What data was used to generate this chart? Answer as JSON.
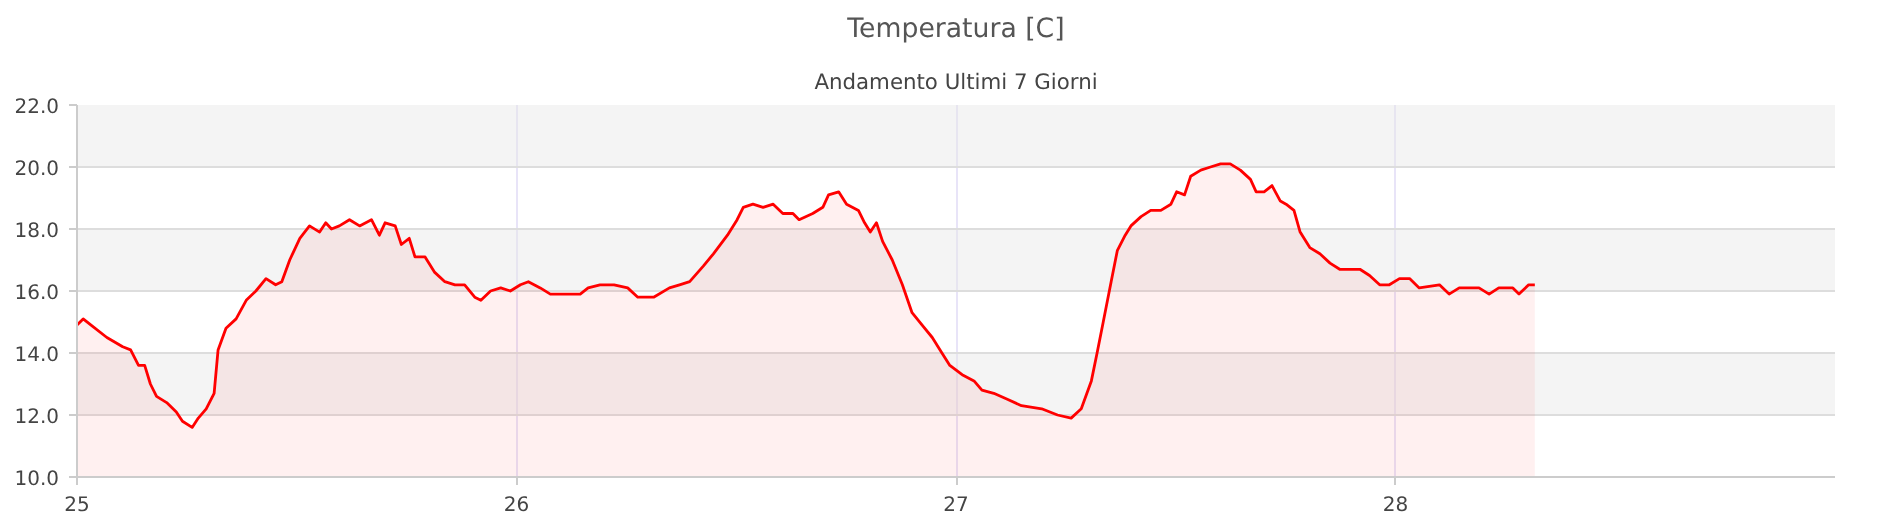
{
  "chart_data": {
    "type": "area",
    "title": "Temperatura [C]",
    "subtitle": "Andamento Ultimi 7 Giorni",
    "x": [
      25.0,
      25.014,
      25.032,
      25.068,
      25.104,
      25.122,
      25.14,
      25.154,
      25.167,
      25.181,
      25.204,
      25.226,
      25.24,
      25.262,
      25.276,
      25.294,
      25.312,
      25.321,
      25.339,
      25.362,
      25.385,
      25.407,
      25.43,
      25.452,
      25.466,
      25.484,
      25.507,
      25.529,
      25.552,
      25.566,
      25.579,
      25.597,
      25.62,
      25.643,
      25.67,
      25.688,
      25.701,
      25.724,
      25.738,
      25.756,
      25.769,
      25.792,
      25.814,
      25.837,
      25.86,
      25.882,
      25.905,
      25.919,
      25.941,
      25.964,
      25.986,
      26.009,
      26.027,
      26.054,
      26.077,
      26.109,
      26.145,
      26.163,
      26.19,
      26.222,
      26.253,
      26.276,
      26.312,
      26.348,
      26.371,
      26.394,
      26.425,
      26.448,
      26.48,
      26.502,
      26.516,
      26.538,
      26.561,
      26.584,
      26.606,
      26.629,
      26.643,
      26.674,
      26.697,
      26.71,
      26.733,
      26.751,
      26.778,
      26.792,
      26.805,
      26.819,
      26.833,
      26.855,
      26.878,
      26.9,
      26.923,
      26.946,
      26.968,
      26.986,
      27.014,
      27.041,
      27.059,
      27.086,
      27.118,
      27.149,
      27.195,
      27.231,
      27.262,
      27.285,
      27.308,
      27.321,
      27.335,
      27.353,
      27.367,
      27.385,
      27.398,
      27.421,
      27.443,
      27.466,
      27.489,
      27.502,
      27.52,
      27.534,
      27.557,
      27.579,
      27.602,
      27.624,
      27.647,
      27.67,
      27.683,
      27.701,
      27.719,
      27.738,
      27.751,
      27.769,
      27.783,
      27.805,
      27.828,
      27.851,
      27.873,
      27.919,
      27.941,
      27.964,
      27.986,
      28.009,
      28.032,
      28.054,
      28.1,
      28.122,
      28.145,
      28.19,
      28.213,
      28.235,
      28.267,
      28.281,
      28.303,
      28.317
    ],
    "series": [
      {
        "color": "#ff0000",
        "values": [
          14.9,
          15.1,
          14.9,
          14.5,
          14.2,
          14.1,
          13.6,
          13.6,
          13.0,
          12.6,
          12.4,
          12.1,
          11.8,
          11.6,
          11.9,
          12.2,
          12.7,
          14.1,
          14.8,
          15.1,
          15.7,
          16.0,
          16.4,
          16.2,
          16.3,
          17.0,
          17.7,
          18.1,
          17.9,
          18.2,
          18.0,
          18.1,
          18.3,
          18.1,
          18.3,
          17.8,
          18.2,
          18.1,
          17.5,
          17.7,
          17.1,
          17.1,
          16.6,
          16.3,
          16.2,
          16.2,
          15.8,
          15.7,
          16.0,
          16.1,
          16.0,
          16.2,
          16.3,
          16.1,
          15.9,
          15.9,
          15.9,
          16.1,
          16.2,
          16.2,
          16.1,
          15.8,
          15.8,
          16.1,
          16.2,
          16.3,
          16.8,
          17.2,
          17.8,
          18.3,
          18.7,
          18.8,
          18.7,
          18.8,
          18.5,
          18.5,
          18.3,
          18.5,
          18.7,
          19.1,
          19.2,
          18.8,
          18.6,
          18.2,
          17.9,
          18.2,
          17.6,
          17.0,
          16.2,
          15.3,
          14.9,
          14.5,
          14.0,
          13.6,
          13.3,
          13.1,
          12.8,
          12.7,
          12.5,
          12.3,
          12.2,
          12.0,
          11.9,
          12.2,
          13.1,
          14.0,
          15.0,
          16.3,
          17.3,
          17.8,
          18.1,
          18.4,
          18.6,
          18.6,
          18.8,
          19.2,
          19.1,
          19.7,
          19.9,
          20.0,
          20.1,
          20.1,
          19.9,
          19.6,
          19.2,
          19.2,
          19.4,
          18.9,
          18.8,
          18.6,
          17.9,
          17.4,
          17.2,
          16.9,
          16.7,
          16.7,
          16.5,
          16.2,
          16.2,
          16.4,
          16.4,
          16.1,
          16.2,
          15.9,
          16.1,
          16.1,
          15.9,
          16.1,
          16.1,
          15.9,
          16.2,
          16.2
        ]
      }
    ],
    "xlim": [
      25,
      29
    ],
    "xticks": [
      25,
      26,
      27,
      28
    ],
    "ylim": [
      10,
      22
    ],
    "yticks": [
      {
        "value": 10,
        "label": "10.0"
      },
      {
        "value": 12,
        "label": "12.0"
      },
      {
        "value": 14,
        "label": "14.0"
      },
      {
        "value": 16,
        "label": "16.0"
      },
      {
        "value": 18,
        "label": "18.0"
      },
      {
        "value": 20,
        "label": "20.0"
      },
      {
        "value": 22,
        "label": "22.0"
      }
    ],
    "grid": true
  }
}
